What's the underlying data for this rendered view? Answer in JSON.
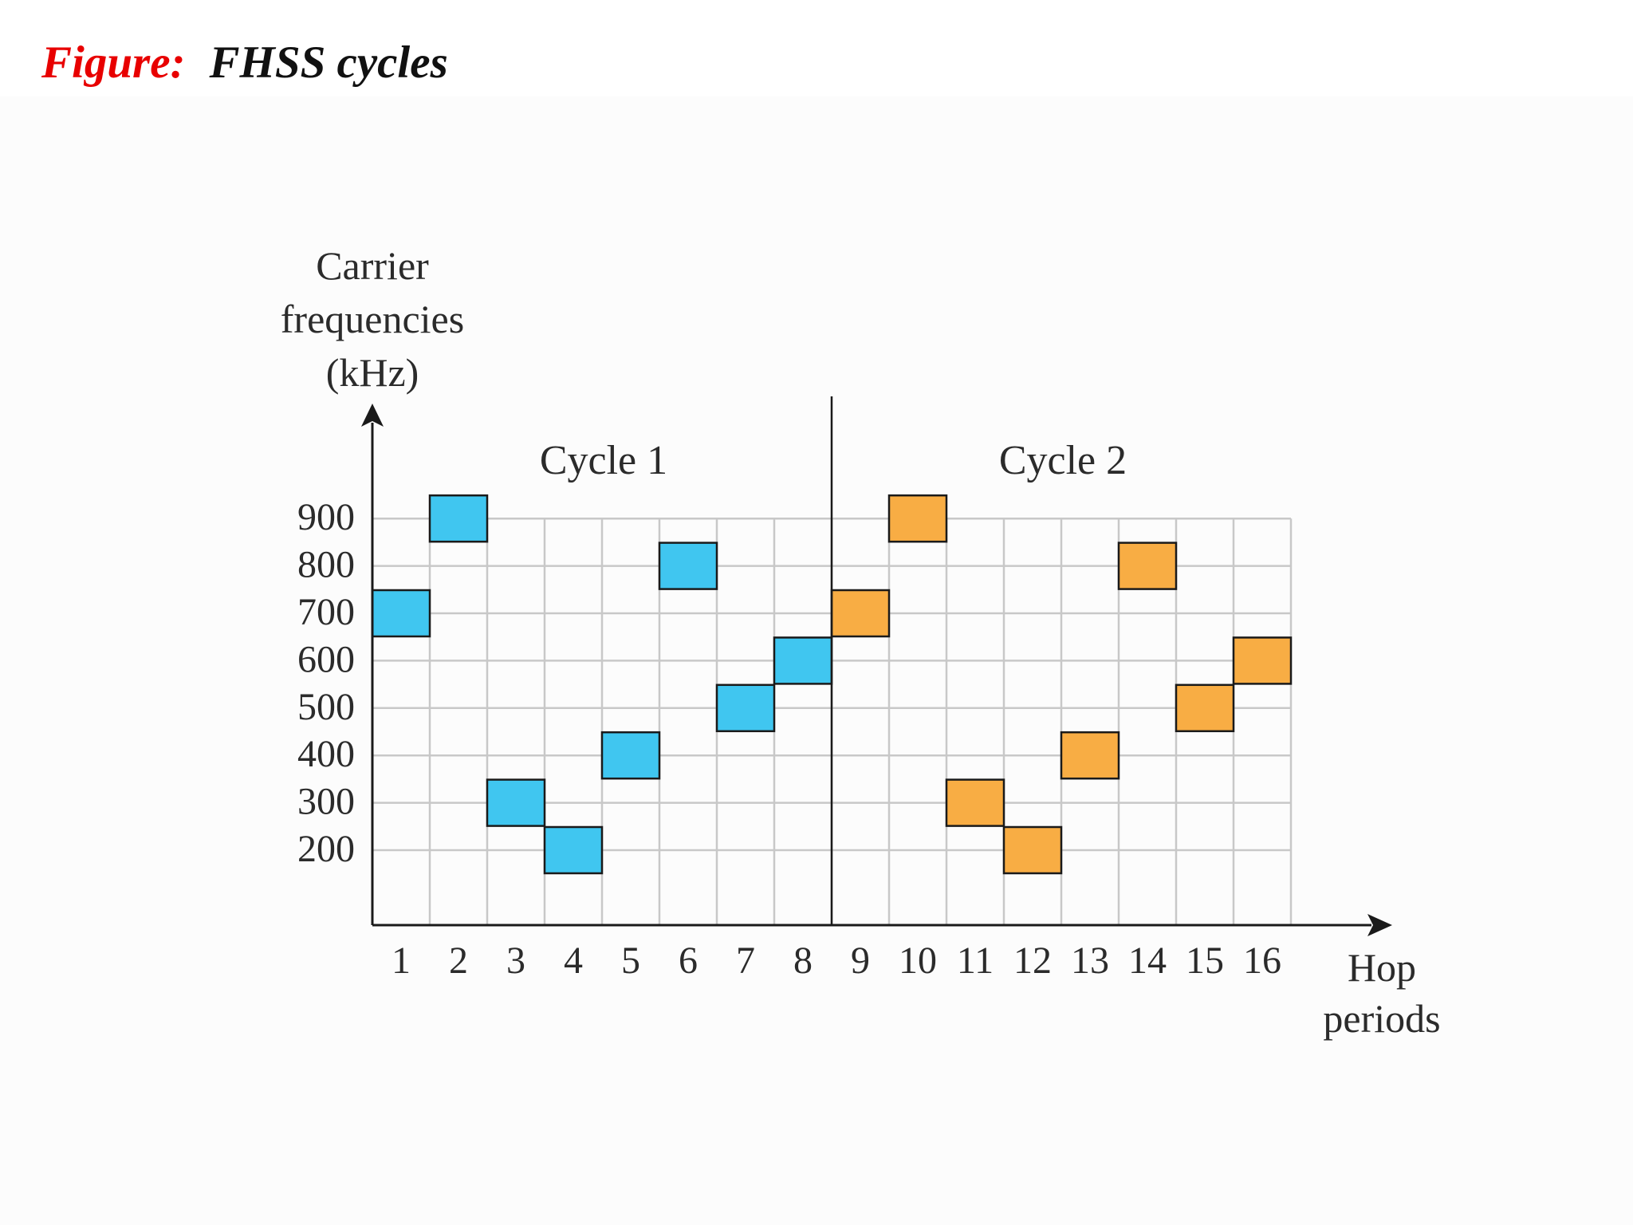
{
  "figure": {
    "prefix": "Figure:",
    "title": "FHSS cycles"
  },
  "chart_data": {
    "type": "table",
    "title": "FHSS cycles",
    "ylabel_lines": [
      "Carrier",
      "frequencies",
      "(kHz)"
    ],
    "xlabel_lines": [
      "Hop",
      "periods"
    ],
    "yticks": [
      200,
      300,
      400,
      500,
      600,
      700,
      800,
      900
    ],
    "xticks": [
      1,
      2,
      3,
      4,
      5,
      6,
      7,
      8,
      9,
      10,
      11,
      12,
      13,
      14,
      15,
      16
    ],
    "ylim": [
      100,
      1000
    ],
    "grid": true,
    "cycle_divider_after_period": 8,
    "cycle_labels": [
      "Cycle 1",
      "Cycle 2"
    ],
    "series": [
      {
        "name": "Cycle 1",
        "color": "#40c6f0",
        "x": [
          1,
          2,
          3,
          4,
          5,
          6,
          7,
          8
        ],
        "y": [
          700,
          900,
          300,
          200,
          400,
          800,
          500,
          600
        ]
      },
      {
        "name": "Cycle 2",
        "color": "#f8ad44",
        "x": [
          9,
          10,
          11,
          12,
          13,
          14,
          15,
          16
        ],
        "y": [
          700,
          900,
          300,
          200,
          400,
          800,
          500,
          600
        ]
      }
    ]
  }
}
